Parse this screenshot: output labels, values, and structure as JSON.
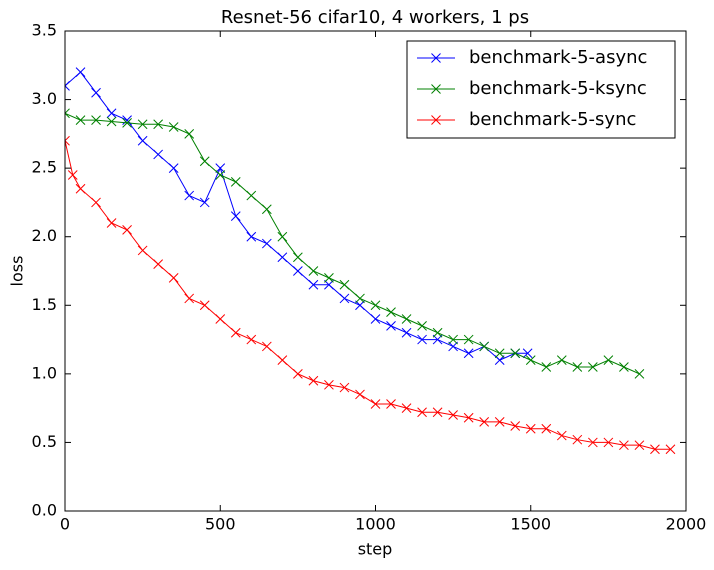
{
  "chart_data": {
    "type": "line",
    "title": "Resnet-56 cifar10, 4 workers, 1 ps",
    "xlabel": "step",
    "ylabel": "loss",
    "xlim": [
      0,
      2000
    ],
    "ylim": [
      0,
      3.5
    ],
    "xticks": [
      0,
      500,
      1000,
      1500,
      2000
    ],
    "yticks": [
      {
        "value": 0,
        "label": "0.0"
      },
      0.5,
      {
        "value": 1,
        "label": "1.0"
      },
      1.5,
      {
        "value": 2,
        "label": "2.0"
      },
      2.5,
      {
        "value": 3,
        "label": "3.0"
      },
      3.5
    ],
    "grid": false,
    "legend": "upper right",
    "marker": "x",
    "series": [
      {
        "name": "benchmark-5-async",
        "color": "#0000ff",
        "x": [
          0,
          50,
          100,
          150,
          200,
          250,
          300,
          350,
          400,
          450,
          500,
          550,
          600,
          650,
          700,
          750,
          800,
          850,
          900,
          950,
          1000,
          1050,
          1100,
          1150,
          1200,
          1250,
          1300,
          1350,
          1400,
          1450,
          1490
        ],
        "values": [
          3.1,
          3.2,
          3.05,
          2.9,
          2.85,
          2.7,
          2.6,
          2.5,
          2.3,
          2.25,
          2.5,
          2.15,
          2.0,
          1.95,
          1.85,
          1.75,
          1.65,
          1.65,
          1.55,
          1.5,
          1.4,
          1.35,
          1.3,
          1.25,
          1.25,
          1.2,
          1.15,
          1.2,
          1.1,
          1.15,
          1.15
        ]
      },
      {
        "name": "benchmark-5-ksync",
        "color": "#008000",
        "x": [
          0,
          50,
          100,
          150,
          200,
          250,
          300,
          350,
          400,
          450,
          500,
          550,
          600,
          650,
          700,
          750,
          800,
          850,
          900,
          950,
          1000,
          1050,
          1100,
          1150,
          1200,
          1250,
          1300,
          1350,
          1400,
          1450,
          1500,
          1550,
          1600,
          1650,
          1700,
          1750,
          1800,
          1850
        ],
        "values": [
          2.9,
          2.85,
          2.85,
          2.84,
          2.83,
          2.82,
          2.82,
          2.8,
          2.75,
          2.55,
          2.45,
          2.4,
          2.3,
          2.2,
          2.0,
          1.85,
          1.75,
          1.7,
          1.65,
          1.55,
          1.5,
          1.45,
          1.4,
          1.35,
          1.3,
          1.25,
          1.25,
          1.2,
          1.15,
          1.15,
          1.1,
          1.05,
          1.1,
          1.05,
          1.05,
          1.1,
          1.05,
          1.0
        ]
      },
      {
        "name": "benchmark-5-sync",
        "color": "#ff0000",
        "x": [
          0,
          25,
          50,
          100,
          150,
          200,
          250,
          300,
          350,
          400,
          450,
          500,
          550,
          600,
          650,
          700,
          750,
          800,
          850,
          900,
          950,
          1000,
          1050,
          1100,
          1150,
          1200,
          1250,
          1300,
          1350,
          1400,
          1450,
          1500,
          1550,
          1600,
          1650,
          1700,
          1750,
          1800,
          1850,
          1900,
          1950
        ],
        "values": [
          2.7,
          2.45,
          2.35,
          2.25,
          2.1,
          2.05,
          1.9,
          1.8,
          1.7,
          1.55,
          1.5,
          1.4,
          1.3,
          1.25,
          1.2,
          1.1,
          1.0,
          0.95,
          0.92,
          0.9,
          0.85,
          0.78,
          0.78,
          0.75,
          0.72,
          0.72,
          0.7,
          0.68,
          0.65,
          0.65,
          0.62,
          0.6,
          0.6,
          0.55,
          0.52,
          0.5,
          0.5,
          0.48,
          0.48,
          0.45,
          0.45
        ]
      }
    ]
  }
}
